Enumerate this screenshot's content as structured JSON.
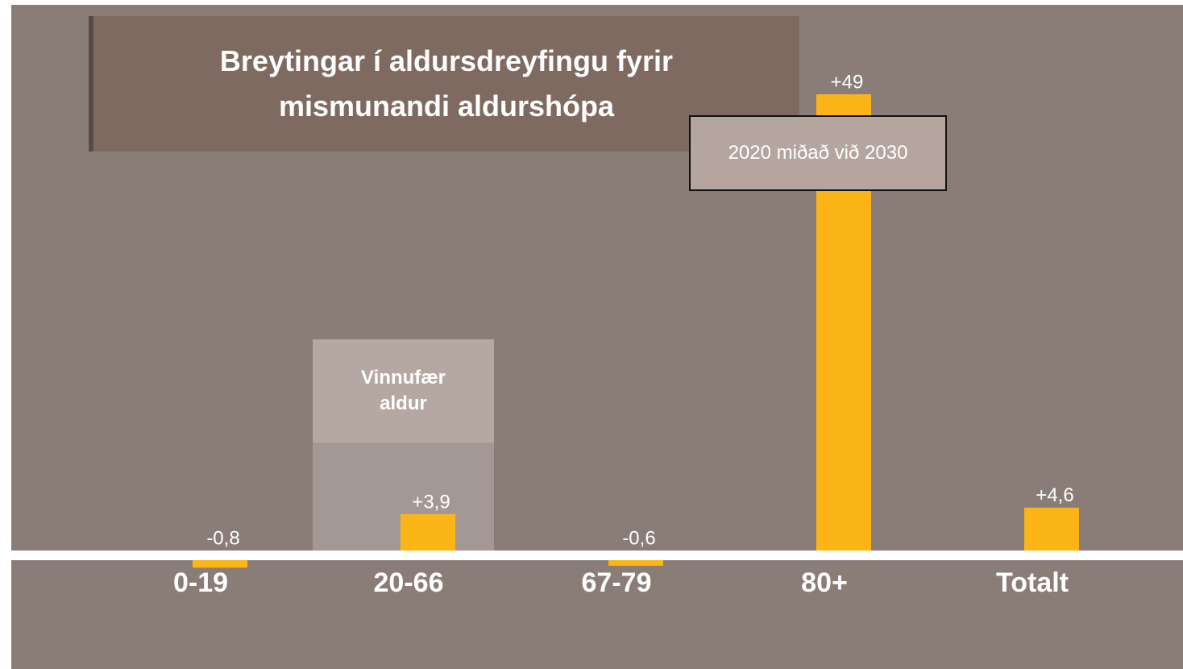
{
  "chart_data": {
    "type": "bar",
    "title": "Breytingar í aldursdreyfingu fyrir mismunandi aldurshópa",
    "subtitle": "2020 miðað við 2030",
    "annotations": [
      "Vinnufær aldur"
    ],
    "categories": [
      "0-19",
      "20-66",
      "67-79",
      "80+",
      "Totalt"
    ],
    "values": [
      -0.8,
      3.9,
      -0.6,
      49,
      4.6
    ],
    "value_labels": [
      "-0,8",
      "+3,9",
      "-0,6",
      "+49",
      "+4,6"
    ],
    "color": "#fbb516"
  }
}
